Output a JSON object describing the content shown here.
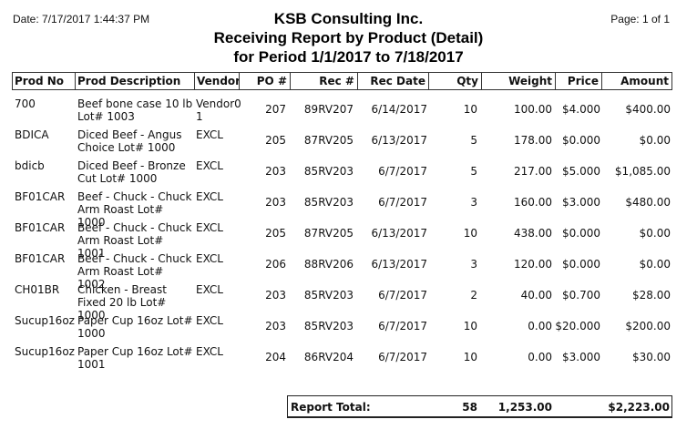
{
  "header": {
    "date": "Date: 7/17/2017 1:44:37 PM",
    "page": "Page: 1 of 1",
    "company": "KSB Consulting Inc.",
    "report_title": "Receiving Report by Product (Detail)",
    "period": "for Period 1/1/2017 to 7/18/2017"
  },
  "columns": {
    "prod_no": "Prod No",
    "prod_desc": "Prod Description",
    "vendor": "Vendor",
    "po": "PO #",
    "rec": "Rec #",
    "rec_date": "Rec Date",
    "qty": "Qty",
    "weight": "Weight",
    "price": "Price",
    "amount": "Amount"
  },
  "rows": [
    {
      "prod_no": "700",
      "desc": "Beef bone case 10 lb Lot# 1003",
      "vendor": "Vendor0\n1",
      "po": "207",
      "rec": "89RV207",
      "rec_date": "6/14/2017",
      "qty": "10",
      "weight": "100.00",
      "price": "$4.000",
      "amount": "$400.00"
    },
    {
      "prod_no": "BDICA",
      "desc": "Diced Beef - Angus Choice Lot# 1000",
      "vendor": "EXCL",
      "po": "205",
      "rec": "87RV205",
      "rec_date": "6/13/2017",
      "qty": "5",
      "weight": "178.00",
      "price": "$0.000",
      "amount": "$0.00"
    },
    {
      "prod_no": "bdicb",
      "desc": "Diced Beef - Bronze Cut Lot# 1000",
      "vendor": "EXCL",
      "po": "203",
      "rec": "85RV203",
      "rec_date": "6/7/2017",
      "qty": "5",
      "weight": "217.00",
      "price": "$5.000",
      "amount": "$1,085.00"
    },
    {
      "prod_no": "BF01CAR",
      "desc": "Beef - Chuck - Chuck Arm Roast Lot# 1000",
      "vendor": "EXCL",
      "po": "203",
      "rec": "85RV203",
      "rec_date": "6/7/2017",
      "qty": "3",
      "weight": "160.00",
      "price": "$3.000",
      "amount": "$480.00"
    },
    {
      "prod_no": "BF01CAR",
      "desc": "Beef - Chuck - Chuck Arm Roast Lot# 1001",
      "vendor": "EXCL",
      "po": "205",
      "rec": "87RV205",
      "rec_date": "6/13/2017",
      "qty": "10",
      "weight": "438.00",
      "price": "$0.000",
      "amount": "$0.00"
    },
    {
      "prod_no": "BF01CAR",
      "desc": "Beef - Chuck - Chuck Arm Roast Lot# 1002",
      "vendor": "EXCL",
      "po": "206",
      "rec": "88RV206",
      "rec_date": "6/13/2017",
      "qty": "3",
      "weight": "120.00",
      "price": "$0.000",
      "amount": "$0.00"
    },
    {
      "prod_no": "CH01BR",
      "desc": "Chicken - Breast Fixed 20 lb Lot# 1000",
      "vendor": "EXCL",
      "po": "203",
      "rec": "85RV203",
      "rec_date": "6/7/2017",
      "qty": "2",
      "weight": "40.00",
      "price": "$0.700",
      "amount": "$28.00"
    },
    {
      "prod_no": "Sucup16oz",
      "desc": "Paper Cup 16oz Lot# 1000",
      "vendor": "EXCL",
      "po": "203",
      "rec": "85RV203",
      "rec_date": "6/7/2017",
      "qty": "10",
      "weight": "0.00",
      "price": "$20.000",
      "amount": "$200.00"
    },
    {
      "prod_no": "Sucup16oz",
      "desc": "Paper Cup 16oz Lot# 1001",
      "vendor": "EXCL",
      "po": "204",
      "rec": "86RV204",
      "rec_date": "6/7/2017",
      "qty": "10",
      "weight": "0.00",
      "price": "$3.000",
      "amount": "$30.00"
    }
  ],
  "totals": {
    "label": "Report Total:",
    "qty": "58",
    "weight": "1,253.00",
    "amount": "$2,223.00"
  }
}
